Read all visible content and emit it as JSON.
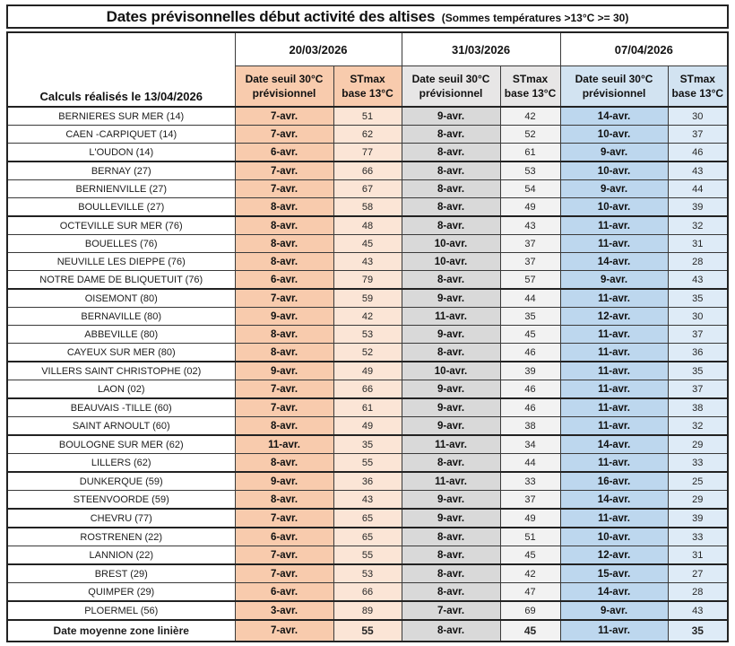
{
  "colors": {
    "group1_header": "#F8CBAD",
    "group1_date_col": "#F8CBAD",
    "group1_stmax_col": "#FBE5D6",
    "group2_header": "#E7E6E6",
    "group2_date_col": "#D9D9D9",
    "group2_stmax_col": "#F2F2F2",
    "group3_header": "#D2E3F1",
    "group3_date_col": "#BDD7EE",
    "group3_stmax_col": "#DEEBF7",
    "border": "#3a3a3a"
  },
  "chart_data": {
    "type": "table",
    "title": "Dates prévisonnelles début activité des altises",
    "subtitle": "(Sommes températures >13°C >= 30)",
    "corner_label": "Calculs réalisés le 13/04/2026",
    "column_groups": [
      "20/03/2026",
      "31/03/2026",
      "07/04/2026"
    ],
    "sub_columns": {
      "date": [
        "Date seuil 30°C",
        "prévisionnel"
      ],
      "stmax": [
        "STmax",
        "base 13°C"
      ]
    },
    "rows": [
      [
        "BERNIERES SUR MER (14)",
        "7-avr.",
        51,
        "9-avr.",
        42,
        "14-avr.",
        30
      ],
      [
        "CAEN -CARPIQUET (14)",
        "7-avr.",
        62,
        "8-avr.",
        52,
        "10-avr.",
        37
      ],
      [
        "L'OUDON (14)",
        "6-avr.",
        77,
        "8-avr.",
        61,
        "9-avr.",
        46
      ],
      [
        "BERNAY (27)",
        "7-avr.",
        66,
        "8-avr.",
        53,
        "10-avr.",
        43
      ],
      [
        "BERNIENVILLE (27)",
        "7-avr.",
        67,
        "8-avr.",
        54,
        "9-avr.",
        44
      ],
      [
        "BOULLEVILLE (27)",
        "8-avr.",
        58,
        "8-avr.",
        49,
        "10-avr.",
        39
      ],
      [
        "OCTEVILLE SUR MER (76)",
        "8-avr.",
        48,
        "8-avr.",
        43,
        "11-avr.",
        32
      ],
      [
        "BOUELLES (76)",
        "8-avr.",
        45,
        "10-avr.",
        37,
        "11-avr.",
        31
      ],
      [
        "NEUVILLE LES DIEPPE (76)",
        "8-avr.",
        43,
        "10-avr.",
        37,
        "14-avr.",
        28
      ],
      [
        "NOTRE DAME DE BLIQUETUIT (76)",
        "6-avr.",
        79,
        "8-avr.",
        57,
        "9-avr.",
        43
      ],
      [
        "OISEMONT (80)",
        "7-avr.",
        59,
        "9-avr.",
        44,
        "11-avr.",
        35
      ],
      [
        "BERNAVILLE (80)",
        "9-avr.",
        42,
        "11-avr.",
        35,
        "12-avr.",
        30
      ],
      [
        "ABBEVILLE (80)",
        "8-avr.",
        53,
        "9-avr.",
        45,
        "11-avr.",
        37
      ],
      [
        "CAYEUX SUR MER (80)",
        "8-avr.",
        52,
        "8-avr.",
        46,
        "11-avr.",
        36
      ],
      [
        "VILLERS SAINT CHRISTOPHE (02)",
        "9-avr.",
        49,
        "10-avr.",
        39,
        "11-avr.",
        35
      ],
      [
        "LAON (02)",
        "7-avr.",
        66,
        "9-avr.",
        46,
        "11-avr.",
        37
      ],
      [
        "BEAUVAIS -TILLE (60)",
        "7-avr.",
        61,
        "9-avr.",
        46,
        "11-avr.",
        38
      ],
      [
        "SAINT ARNOULT (60)",
        "8-avr.",
        49,
        "9-avr.",
        38,
        "11-avr.",
        32
      ],
      [
        "BOULOGNE SUR MER (62)",
        "11-avr.",
        35,
        "11-avr.",
        34,
        "14-avr.",
        29
      ],
      [
        "LILLERS (62)",
        "8-avr.",
        55,
        "8-avr.",
        44,
        "11-avr.",
        33
      ],
      [
        "DUNKERQUE (59)",
        "9-avr.",
        36,
        "11-avr.",
        33,
        "16-avr.",
        25
      ],
      [
        "STEENVOORDE (59)",
        "8-avr.",
        43,
        "9-avr.",
        37,
        "14-avr.",
        29
      ],
      [
        "CHEVRU (77)",
        "7-avr.",
        65,
        "9-avr.",
        49,
        "11-avr.",
        39
      ],
      [
        "ROSTRENEN (22)",
        "6-avr.",
        65,
        "8-avr.",
        51,
        "10-avr.",
        33
      ],
      [
        "LANNION (22)",
        "7-avr.",
        55,
        "8-avr.",
        45,
        "12-avr.",
        31
      ],
      [
        "BREST (29)",
        "7-avr.",
        53,
        "8-avr.",
        42,
        "15-avr.",
        27
      ],
      [
        "QUIMPER (29)",
        "6-avr.",
        66,
        "8-avr.",
        47,
        "14-avr.",
        28
      ],
      [
        "PLOERMEL (56)",
        "3-avr.",
        89,
        "7-avr.",
        69,
        "9-avr.",
        43
      ]
    ],
    "group_start_rows": [
      3,
      6,
      10,
      14,
      16,
      18,
      20,
      22,
      23,
      25,
      27
    ],
    "footer": [
      "Date moyenne zone linière",
      "7-avr.",
      55,
      "8-avr.",
      45,
      "11-avr.",
      35
    ]
  }
}
